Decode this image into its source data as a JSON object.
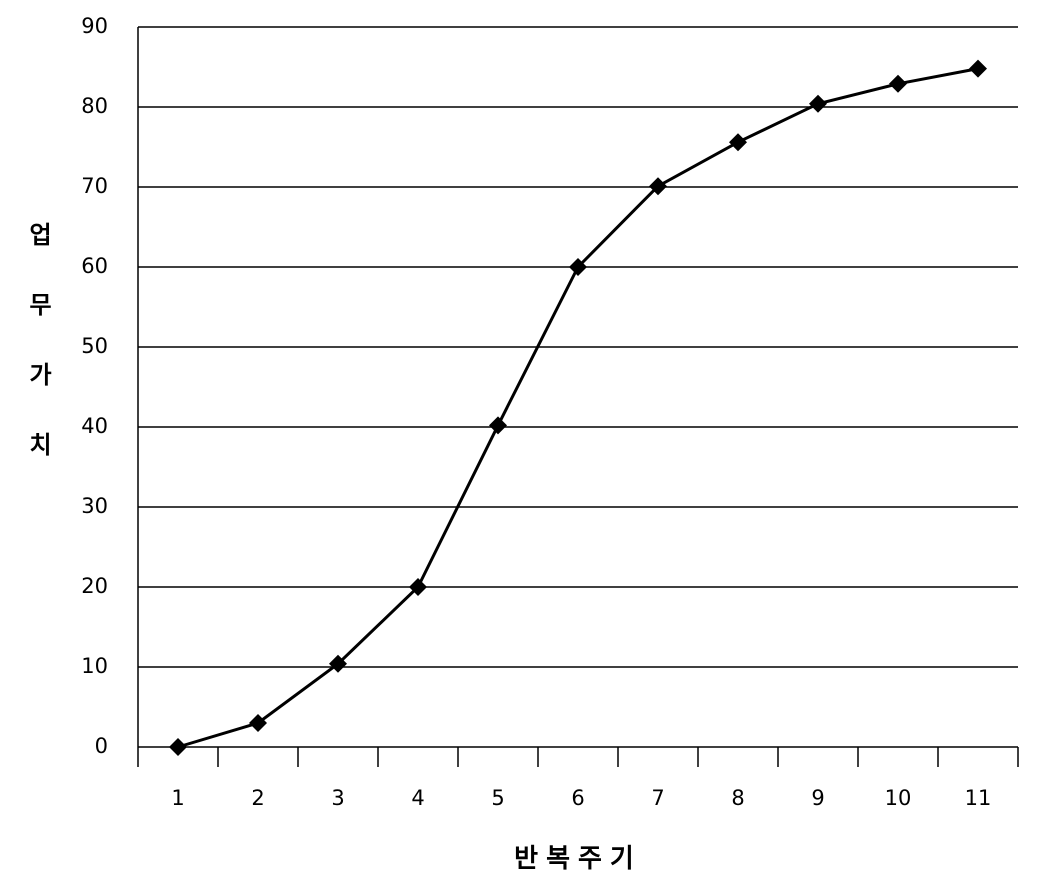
{
  "chart_data": {
    "type": "line",
    "x_label": "반복주기",
    "y_label": "업무가치",
    "categories": [
      "1",
      "2",
      "3",
      "4",
      "5",
      "6",
      "7",
      "8",
      "9",
      "10",
      "11"
    ],
    "series": [
      {
        "name": null,
        "color": "#000000",
        "values": [
          0,
          3,
          10.4,
          20,
          40.2,
          60,
          70.1,
          75.6,
          80.4,
          82.9,
          84.8
        ]
      }
    ],
    "ylim": [
      0,
      90
    ],
    "yticks": [
      0,
      10,
      20,
      30,
      40,
      50,
      60,
      70,
      80,
      90
    ],
    "grid": true
  }
}
